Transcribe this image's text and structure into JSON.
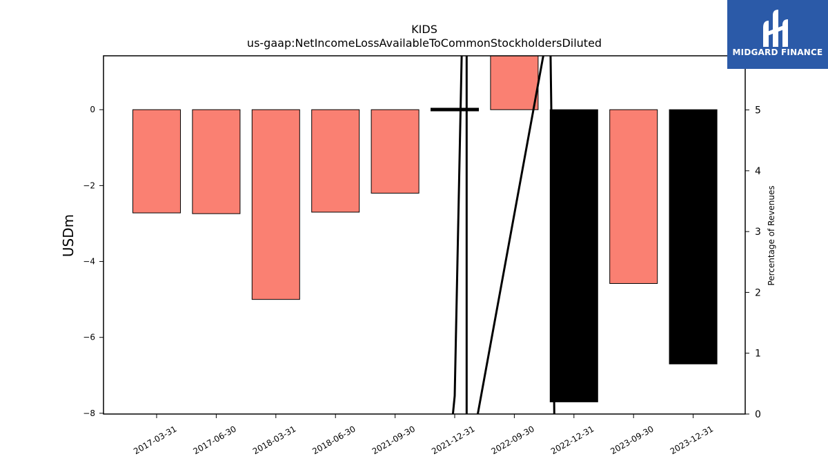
{
  "chart_data": {
    "type": "bar",
    "title": "KIDS",
    "subtitle": "us-gaap:NetIncomeLossAvailableToCommonStockholdersDiluted",
    "ylabel": "USDm",
    "y2label": "Percentage of Revenues",
    "categories": [
      "2017-03-31",
      "2017-06-30",
      "2018-03-31",
      "2018-06-30",
      "2021-09-30",
      "2021-12-31",
      "2022-09-30",
      "2022-12-31",
      "2023-09-30",
      "2023-12-31"
    ],
    "values": [
      -2.72,
      -2.74,
      -5.0,
      -2.7,
      -2.2,
      0.04,
      1.45,
      -7.7,
      -4.58,
      -6.7
    ],
    "bar_colors": [
      "#fa8072",
      "#fa8072",
      "#fa8072",
      "#fa8072",
      "#fa8072",
      "#000000",
      "#fa8072",
      "#000000",
      "#fa8072",
      "#000000"
    ],
    "ylim": [
      -8.02,
      1.42
    ],
    "yticks": [
      0,
      -2,
      -4,
      -6,
      -8
    ],
    "y2lim": [
      0,
      5.89
    ],
    "y2ticks": [
      0,
      1,
      2,
      3,
      4,
      5
    ],
    "line": {
      "color": "#000000",
      "points": [
        [
          4.97,
          0
        ],
        [
          5.0,
          0.3
        ],
        [
          5.13,
          6.5
        ],
        [
          5.2,
          6.5
        ],
        [
          5.2,
          -1
        ],
        [
          6.6,
          6.5
        ],
        [
          6.62,
          5
        ],
        [
          6.67,
          0
        ]
      ]
    }
  },
  "logo": {
    "text": "MIDGARD FINANCE",
    "bg": "#2b5aa8"
  }
}
